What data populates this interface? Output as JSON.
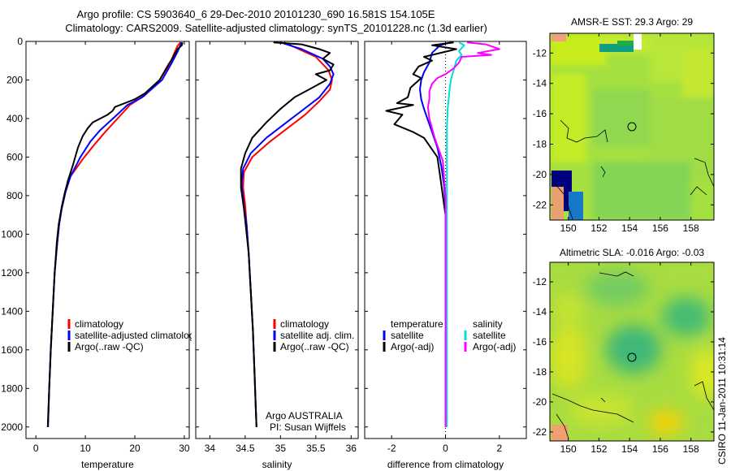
{
  "title_line1": "Argo profile: CS 5903640_6 29-Dec-2010 20101230_690 16.581S 154.105E",
  "title_line2": "Climatology: CARS2009. Satellite-adjusted climatology: synTS_20101228.nc (1.3d earlier)",
  "side_label": "CSIRO 11-Jan-2011 10:31:14",
  "chart_data": [
    {
      "type": "line",
      "id": "temperature",
      "xlabel": "temperature",
      "ylabel": "",
      "xlim": [
        -2,
        31
      ],
      "ylim": [
        0,
        2060
      ],
      "y_reversed": true,
      "xticks": [
        0,
        10,
        20,
        30
      ],
      "yticks": [
        0,
        200,
        400,
        600,
        800,
        1000,
        1200,
        1400,
        1600,
        1800,
        2000
      ],
      "legend": [
        "climatology",
        "satellite-adjusted climatology",
        "Argo(..raw -QC)"
      ],
      "series": [
        {
          "name": "climatology",
          "color": "#ff0000",
          "points": [
            [
              29.2,
              5
            ],
            [
              28.6,
              25
            ],
            [
              28,
              60
            ],
            [
              27,
              120
            ],
            [
              25,
              200
            ],
            [
              22,
              280
            ],
            [
              19,
              330
            ],
            [
              16.5,
              400
            ],
            [
              14,
              470
            ],
            [
              12,
              530
            ],
            [
              9.5,
              610
            ],
            [
              7,
              700
            ],
            [
              6,
              780
            ],
            [
              5.2,
              870
            ],
            [
              4.7,
              950
            ],
            [
              4.3,
              1050
            ],
            [
              3.8,
              1200
            ],
            [
              3.4,
              1400
            ],
            [
              3,
              1600
            ],
            [
              2.7,
              1800
            ],
            [
              2.45,
              2000
            ]
          ]
        },
        {
          "name": "satellite-adjusted climatology",
          "color": "#0000ff",
          "points": [
            [
              29.4,
              5
            ],
            [
              29.2,
              20
            ],
            [
              28.7,
              50
            ],
            [
              27.5,
              110
            ],
            [
              25.5,
              200
            ],
            [
              21.5,
              290
            ],
            [
              18.5,
              330
            ],
            [
              16,
              390
            ],
            [
              13,
              460
            ],
            [
              11,
              520
            ],
            [
              9,
              600
            ],
            [
              7,
              700
            ],
            [
              6,
              780
            ],
            [
              5.2,
              870
            ],
            [
              4.7,
              950
            ],
            [
              4.3,
              1050
            ],
            [
              3.8,
              1200
            ],
            [
              3.4,
              1400
            ],
            [
              3,
              1600
            ],
            [
              2.7,
              1800
            ],
            [
              2.45,
              2000
            ]
          ]
        },
        {
          "name": "Argo(..raw -QC)",
          "color": "#000000",
          "points": [
            [
              29.6,
              5
            ],
            [
              29.5,
              20
            ],
            [
              28.6,
              40
            ],
            [
              27.8,
              80
            ],
            [
              26.8,
              120
            ],
            [
              25,
              200
            ],
            [
              22,
              270
            ],
            [
              20,
              300
            ],
            [
              18,
              320
            ],
            [
              16,
              340
            ],
            [
              15.5,
              360
            ],
            [
              14.5,
              380
            ],
            [
              13,
              400
            ],
            [
              11.5,
              420
            ],
            [
              10.5,
              450
            ],
            [
              9.5,
              490
            ],
            [
              8.5,
              550
            ],
            [
              7.5,
              640
            ],
            [
              6.5,
              720
            ],
            [
              5.8,
              790
            ],
            [
              5.2,
              860
            ],
            [
              4.6,
              950
            ],
            [
              4.2,
              1050
            ],
            [
              3.8,
              1200
            ],
            [
              3.4,
              1400
            ],
            [
              3,
              1600
            ],
            [
              2.7,
              1800
            ],
            [
              2.4,
              2000
            ]
          ]
        }
      ]
    },
    {
      "type": "line",
      "id": "salinity",
      "xlabel": "salinity",
      "ylabel": "",
      "xlim": [
        33.8,
        36.1
      ],
      "ylim": [
        0,
        2060
      ],
      "y_reversed": true,
      "xticks": [
        34,
        34.5,
        35,
        35.5,
        36
      ],
      "xticklabels": [
        "34",
        "34.5",
        "35",
        "35.5",
        "36"
      ],
      "legend": [
        "climatology",
        "satellite adj. clim.",
        "Argo(..raw -QC)"
      ],
      "annotation": [
        "Argo AUSTRALIA",
        "PI: Susan Wijffels"
      ],
      "series": [
        {
          "name": "climatology",
          "color": "#ff0000",
          "points": [
            [
              35.05,
              5
            ],
            [
              35.2,
              30
            ],
            [
              35.5,
              80
            ],
            [
              35.68,
              150
            ],
            [
              35.73,
              200
            ],
            [
              35.7,
              250
            ],
            [
              35.55,
              310
            ],
            [
              35.35,
              380
            ],
            [
              35.1,
              450
            ],
            [
              34.85,
              520
            ],
            [
              34.6,
              600
            ],
            [
              34.48,
              680
            ],
            [
              34.47,
              760
            ],
            [
              34.5,
              850
            ],
            [
              34.52,
              950
            ],
            [
              34.55,
              1100
            ],
            [
              34.58,
              1300
            ],
            [
              34.61,
              1500
            ],
            [
              34.63,
              1700
            ],
            [
              34.65,
              1900
            ],
            [
              34.66,
              2000
            ]
          ]
        },
        {
          "name": "satellite adj. clim.",
          "color": "#0000ff",
          "points": [
            [
              35.0,
              5
            ],
            [
              35.3,
              40
            ],
            [
              35.6,
              90
            ],
            [
              35.7,
              130
            ],
            [
              35.75,
              170
            ],
            [
              35.7,
              220
            ],
            [
              35.55,
              290
            ],
            [
              35.3,
              360
            ],
            [
              35.05,
              430
            ],
            [
              34.8,
              500
            ],
            [
              34.58,
              580
            ],
            [
              34.47,
              660
            ],
            [
              34.45,
              740
            ],
            [
              34.48,
              850
            ],
            [
              34.52,
              950
            ],
            [
              34.55,
              1100
            ],
            [
              34.58,
              1300
            ],
            [
              34.61,
              1500
            ],
            [
              34.63,
              1700
            ],
            [
              34.65,
              1900
            ],
            [
              34.66,
              2000
            ]
          ]
        },
        {
          "name": "Argo(..raw -QC)",
          "color": "#000000",
          "points": [
            [
              34.9,
              5
            ],
            [
              35.3,
              15
            ],
            [
              35.55,
              40
            ],
            [
              35.7,
              60
            ],
            [
              35.6,
              90
            ],
            [
              35.75,
              120
            ],
            [
              35.7,
              150
            ],
            [
              35.5,
              170
            ],
            [
              35.65,
              200
            ],
            [
              35.45,
              240
            ],
            [
              35.2,
              290
            ],
            [
              35.0,
              350
            ],
            [
              34.8,
              420
            ],
            [
              34.6,
              500
            ],
            [
              34.5,
              580
            ],
            [
              34.44,
              660
            ],
            [
              34.44,
              760
            ],
            [
              34.48,
              860
            ],
            [
              34.51,
              960
            ],
            [
              34.55,
              1100
            ],
            [
              34.58,
              1300
            ],
            [
              34.61,
              1500
            ],
            [
              34.63,
              1700
            ],
            [
              34.65,
              1900
            ],
            [
              34.66,
              2000
            ]
          ]
        }
      ]
    },
    {
      "type": "line",
      "id": "difference",
      "xlabel": "difference from climatology",
      "ylabel": "",
      "xlim": [
        -3,
        3
      ],
      "ylim": [
        0,
        2060
      ],
      "y_reversed": true,
      "xticks": [
        -2,
        0,
        2
      ],
      "legend_left": [
        "temperature",
        "satellite",
        "Argo(-adj)"
      ],
      "legend_right": [
        "salinity",
        "satellite",
        "Argo(-adj)"
      ],
      "series": [
        {
          "name": "temperature satellite",
          "color": "#0000ff",
          "points": [
            [
              0.2,
              5
            ],
            [
              -0.2,
              20
            ],
            [
              -0.5,
              60
            ],
            [
              -0.6,
              110
            ],
            [
              -0.8,
              160
            ],
            [
              -0.9,
              200
            ],
            [
              -0.95,
              250
            ],
            [
              -0.9,
              300
            ],
            [
              -0.8,
              350
            ],
            [
              -0.55,
              450
            ],
            [
              -0.3,
              550
            ],
            [
              -0.15,
              650
            ],
            [
              -0.05,
              750
            ],
            [
              0,
              850
            ],
            [
              0,
              1000
            ],
            [
              0,
              1200
            ],
            [
              0,
              1500
            ],
            [
              0,
              1800
            ],
            [
              0,
              2000
            ]
          ]
        },
        {
          "name": "temperature Argo(-adj)",
          "color": "#000000",
          "points": [
            [
              0.3,
              5
            ],
            [
              -0.5,
              20
            ],
            [
              0.4,
              40
            ],
            [
              -0.8,
              80
            ],
            [
              -0.5,
              100
            ],
            [
              -1.0,
              130
            ],
            [
              -1.2,
              170
            ],
            [
              -0.9,
              190
            ],
            [
              -1.3,
              240
            ],
            [
              -1.4,
              290
            ],
            [
              -1.8,
              320
            ],
            [
              -1.2,
              330
            ],
            [
              -2.2,
              360
            ],
            [
              -1.6,
              380
            ],
            [
              -1.9,
              430
            ],
            [
              -1.2,
              470
            ],
            [
              -0.8,
              500
            ],
            [
              -0.6,
              540
            ],
            [
              -0.3,
              600
            ],
            [
              -0.2,
              700
            ],
            [
              -0.1,
              800
            ],
            [
              0,
              900
            ],
            [
              0,
              1100
            ],
            [
              0,
              1400
            ],
            [
              0,
              1700
            ],
            [
              0,
              2000
            ]
          ]
        },
        {
          "name": "salinity satellite",
          "color": "#00dddd",
          "points": [
            [
              0.5,
              5
            ],
            [
              0.7,
              20
            ],
            [
              0.5,
              50
            ],
            [
              0.6,
              70
            ],
            [
              0.4,
              100
            ],
            [
              0.3,
              150
            ],
            [
              0.2,
              200
            ],
            [
              0.15,
              250
            ],
            [
              0.08,
              350
            ],
            [
              0.05,
              450
            ],
            [
              0.05,
              600
            ],
            [
              0.05,
              800
            ],
            [
              0.05,
              1000
            ],
            [
              0.05,
              1200
            ],
            [
              0.05,
              1400
            ],
            [
              0.05,
              1600
            ],
            [
              0.05,
              1800
            ],
            [
              0.05,
              2000
            ]
          ]
        },
        {
          "name": "salinity Argo(-adj)",
          "color": "#ff00ff",
          "points": [
            [
              0.8,
              5
            ],
            [
              1.5,
              15
            ],
            [
              2.0,
              40
            ],
            [
              1.2,
              60
            ],
            [
              1.7,
              70
            ],
            [
              0.6,
              80
            ],
            [
              0.5,
              110
            ],
            [
              0.3,
              140
            ],
            [
              0.0,
              170
            ],
            [
              -0.3,
              190
            ],
            [
              -0.5,
              220
            ],
            [
              -0.6,
              260
            ],
            [
              -0.6,
              300
            ],
            [
              -0.65,
              340
            ],
            [
              -0.6,
              400
            ],
            [
              -0.5,
              450
            ],
            [
              -0.4,
              500
            ],
            [
              -0.25,
              560
            ],
            [
              -0.1,
              620
            ],
            [
              0,
              800
            ],
            [
              0,
              1000
            ],
            [
              0,
              1200
            ],
            [
              0,
              1400
            ],
            [
              0,
              1600
            ],
            [
              0,
              1800
            ],
            [
              0,
              2000
            ]
          ]
        }
      ]
    },
    {
      "type": "heatmap",
      "id": "sst-map",
      "title": "AMSR-E SST: 29.3 Argo: 29",
      "xlim": [
        148.8,
        159.5
      ],
      "ylim": [
        -23,
        -10.7
      ],
      "xticks": [
        150,
        152,
        154,
        156,
        158
      ],
      "yticks": [
        -12,
        -14,
        -16,
        -18,
        -20,
        -22
      ],
      "marker": [
        154.1,
        -16.6
      ]
    },
    {
      "type": "heatmap",
      "id": "sla-map",
      "title": "Altimetric SLA: -0.016 Argo: -0.03",
      "xlim": [
        148.8,
        159.5
      ],
      "ylim": [
        -22.6,
        -10.7
      ],
      "xticks": [
        150,
        152,
        154,
        156,
        158
      ],
      "yticks": [
        -12,
        -14,
        -16,
        -18,
        -20,
        -22
      ],
      "marker": [
        154.1,
        -16.6
      ]
    }
  ]
}
